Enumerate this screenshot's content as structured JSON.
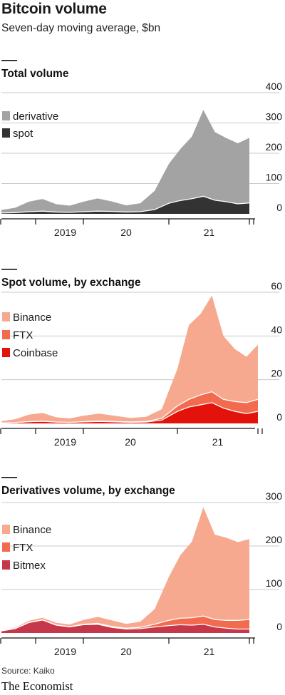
{
  "title": "Bitcoin volume",
  "subtitle": "Seven-day moving average, $bn",
  "source": "Source: Kaiko",
  "brand": "The Economist",
  "chart_data": [
    {
      "type": "area",
      "stacked": true,
      "title": "Total volume",
      "x": [
        "2019-01",
        "2019-03",
        "2019-05",
        "2019-07",
        "2019-09",
        "2019-11",
        "2020-01",
        "2020-03",
        "2020-05",
        "2020-07",
        "2020-09",
        "2020-11",
        "2021-01",
        "2021-02",
        "2021-03",
        "2021-04",
        "2021-05",
        "2021-06",
        "2021-07",
        "2021-08"
      ],
      "x_ticks": [
        "2019",
        "20",
        "21"
      ],
      "y_ticks": [
        0,
        100,
        200,
        300,
        400
      ],
      "ylim": [
        0,
        400
      ],
      "legend": "top-left",
      "series": [
        {
          "name": "spot",
          "color": "#333333",
          "values": [
            3,
            4,
            7,
            9,
            6,
            5,
            7,
            9,
            8,
            6,
            7,
            14,
            35,
            44,
            50,
            58,
            45,
            40,
            33,
            36
          ]
        },
        {
          "name": "derivative",
          "color": "#a3a3a3",
          "values": [
            10,
            16,
            33,
            40,
            26,
            22,
            33,
            42,
            33,
            22,
            28,
            62,
            130,
            170,
            205,
            285,
            225,
            210,
            200,
            215
          ]
        }
      ]
    },
    {
      "type": "area",
      "stacked": true,
      "title": "Spot volume, by exchange",
      "x": [
        "2019-01",
        "2019-03",
        "2019-05",
        "2019-07",
        "2019-09",
        "2019-11",
        "2020-01",
        "2020-03",
        "2020-05",
        "2020-07",
        "2020-09",
        "2020-11",
        "2021-01",
        "2021-02",
        "2021-03",
        "2021-04",
        "2021-05",
        "2021-06",
        "2021-07",
        "2021-08"
      ],
      "x_ticks": [
        "2019",
        "20",
        "21"
      ],
      "y_ticks": [
        0,
        20,
        40,
        60
      ],
      "ylim": [
        0,
        60
      ],
      "legend": "top-left",
      "series": [
        {
          "name": "Coinbase",
          "color": "#e3120b",
          "values": [
            0.2,
            0.4,
            0.8,
            1.0,
            0.6,
            0.5,
            0.7,
            0.9,
            0.7,
            0.5,
            0.6,
            1.5,
            5.5,
            7.5,
            8.5,
            9.5,
            7.0,
            5.5,
            4.5,
            5.5
          ]
        },
        {
          "name": "FTX",
          "color": "#f26b4f",
          "values": [
            0,
            0,
            0,
            0,
            0,
            0,
            0.1,
            0.2,
            0.2,
            0.2,
            0.3,
            0.8,
            2.5,
            3.5,
            4.5,
            5.0,
            4.0,
            4.5,
            5.0,
            5.5
          ]
        },
        {
          "name": "Binance",
          "color": "#f7a98f",
          "values": [
            0.8,
            1.5,
            3.2,
            3.8,
            2.2,
            1.8,
            2.7,
            3.4,
            2.6,
            1.8,
            2.1,
            4.2,
            17,
            34,
            37,
            44,
            29,
            24,
            21,
            25
          ]
        }
      ]
    },
    {
      "type": "area",
      "stacked": true,
      "title": "Derivatives volume, by exchange",
      "x": [
        "2019-01",
        "2019-03",
        "2019-05",
        "2019-07",
        "2019-09",
        "2019-11",
        "2020-01",
        "2020-03",
        "2020-05",
        "2020-07",
        "2020-09",
        "2020-11",
        "2021-01",
        "2021-02",
        "2021-03",
        "2021-04",
        "2021-05",
        "2021-06",
        "2021-07",
        "2021-08"
      ],
      "x_ticks": [
        "2019",
        "20",
        "21"
      ],
      "y_ticks": [
        0,
        100,
        200,
        300
      ],
      "ylim": [
        0,
        300
      ],
      "legend": "top-left",
      "series": [
        {
          "name": "Bitmex",
          "color": "#c7374b",
          "values": [
            5,
            10,
            24,
            30,
            18,
            14,
            19,
            20,
            13,
            9,
            10,
            14,
            17,
            19,
            18,
            20,
            14,
            11,
            9,
            9
          ]
        },
        {
          "name": "FTX",
          "color": "#f26b4f",
          "values": [
            0,
            0,
            0,
            0,
            0.5,
            0.5,
            1,
            2,
            2,
            2,
            3,
            6,
            12,
            15,
            17,
            19,
            17,
            18,
            20,
            22
          ]
        },
        {
          "name": "Binance",
          "color": "#f7a98f",
          "values": [
            1,
            2,
            4,
            5,
            5,
            5,
            10,
            15,
            14,
            10,
            13,
            35,
            100,
            145,
            175,
            250,
            195,
            190,
            180,
            185
          ]
        }
      ]
    }
  ]
}
